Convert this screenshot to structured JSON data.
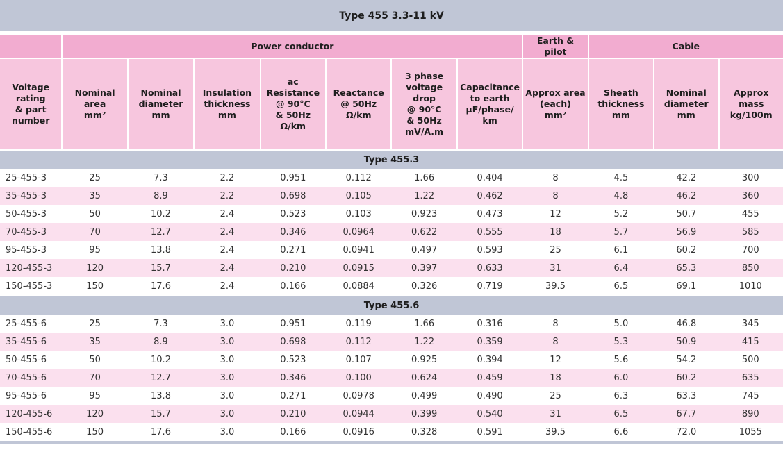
{
  "title": "Type 455  3.3-11 kV",
  "groups": {
    "power_conductor": "Power conductor",
    "earth_pilot": "Earth & pilot",
    "cable": "Cable"
  },
  "columns": [
    [
      "Voltage",
      "rating",
      "& part",
      "number"
    ],
    [
      "Nominal",
      "area",
      "mm²"
    ],
    [
      "Nominal",
      "diameter",
      "mm"
    ],
    [
      "Insulation",
      "thickness",
      "mm"
    ],
    [
      "ac",
      "Resistance",
      "@ 90°C",
      "& 50Hz",
      "Ω/km"
    ],
    [
      "Reactance",
      "@ 50Hz",
      "Ω/km"
    ],
    [
      "3 phase",
      "voltage drop",
      "@ 90°C",
      "& 50Hz",
      "mV/A.m"
    ],
    [
      "Capacitance",
      "to earth",
      "µF/phase/",
      "km"
    ],
    [
      "Approx area",
      "(each)",
      "mm²"
    ],
    [
      "Sheath",
      "thickness",
      "mm"
    ],
    [
      "Nominal",
      "diameter",
      "mm"
    ],
    [
      "Approx",
      "mass",
      "kg/100m"
    ]
  ],
  "sections": [
    {
      "label": "Type 455.3",
      "rows": [
        [
          "25-455-3",
          "25",
          "7.3",
          "2.2",
          "0.951",
          "0.112",
          "1.66",
          "0.404",
          "8",
          "4.5",
          "42.2",
          "300"
        ],
        [
          "35-455-3",
          "35",
          "8.9",
          "2.2",
          "0.698",
          "0.105",
          "1.22",
          "0.462",
          "8",
          "4.8",
          "46.2",
          "360"
        ],
        [
          "50-455-3",
          "50",
          "10.2",
          "2.4",
          "0.523",
          "0.103",
          "0.923",
          "0.473",
          "12",
          "5.2",
          "50.7",
          "455"
        ],
        [
          "70-455-3",
          "70",
          "12.7",
          "2.4",
          "0.346",
          "0.0964",
          "0.622",
          "0.555",
          "18",
          "5.7",
          "56.9",
          "585"
        ],
        [
          "95-455-3",
          "95",
          "13.8",
          "2.4",
          "0.271",
          "0.0941",
          "0.497",
          "0.593",
          "25",
          "6.1",
          "60.2",
          "700"
        ],
        [
          "120-455-3",
          "120",
          "15.7",
          "2.4",
          "0.210",
          "0.0915",
          "0.397",
          "0.633",
          "31",
          "6.4",
          "65.3",
          "850"
        ],
        [
          "150-455-3",
          "150",
          "17.6",
          "2.4",
          "0.166",
          "0.0884",
          "0.326",
          "0.719",
          "39.5",
          "6.5",
          "69.1",
          "1010"
        ]
      ]
    },
    {
      "label": "Type 455.6",
      "rows": [
        [
          "25-455-6",
          "25",
          "7.3",
          "3.0",
          "0.951",
          "0.119",
          "1.66",
          "0.316",
          "8",
          "5.0",
          "46.8",
          "345"
        ],
        [
          "35-455-6",
          "35",
          "8.9",
          "3.0",
          "0.698",
          "0.112",
          "1.22",
          "0.359",
          "8",
          "5.3",
          "50.9",
          "415"
        ],
        [
          "50-455-6",
          "50",
          "10.2",
          "3.0",
          "0.523",
          "0.107",
          "0.925",
          "0.394",
          "12",
          "5.6",
          "54.2",
          "500"
        ],
        [
          "70-455-6",
          "70",
          "12.7",
          "3.0",
          "0.346",
          "0.100",
          "0.624",
          "0.459",
          "18",
          "6.0",
          "60.2",
          "635"
        ],
        [
          "95-455-6",
          "95",
          "13.8",
          "3.0",
          "0.271",
          "0.0978",
          "0.499",
          "0.490",
          "25",
          "6.3",
          "63.3",
          "745"
        ],
        [
          "120-455-6",
          "120",
          "15.7",
          "3.0",
          "0.210",
          "0.0944",
          "0.399",
          "0.540",
          "31",
          "6.5",
          "67.7",
          "890"
        ],
        [
          "150-455-6",
          "150",
          "17.6",
          "3.0",
          "0.166",
          "0.0916",
          "0.328",
          "0.591",
          "39.5",
          "6.6",
          "72.0",
          "1055"
        ]
      ]
    }
  ],
  "colors": {
    "title_band": "#c0c6d6",
    "group_header": "#f2acd0",
    "column_header": "#f7c6de",
    "row_stripe": "#fbe0ee"
  }
}
